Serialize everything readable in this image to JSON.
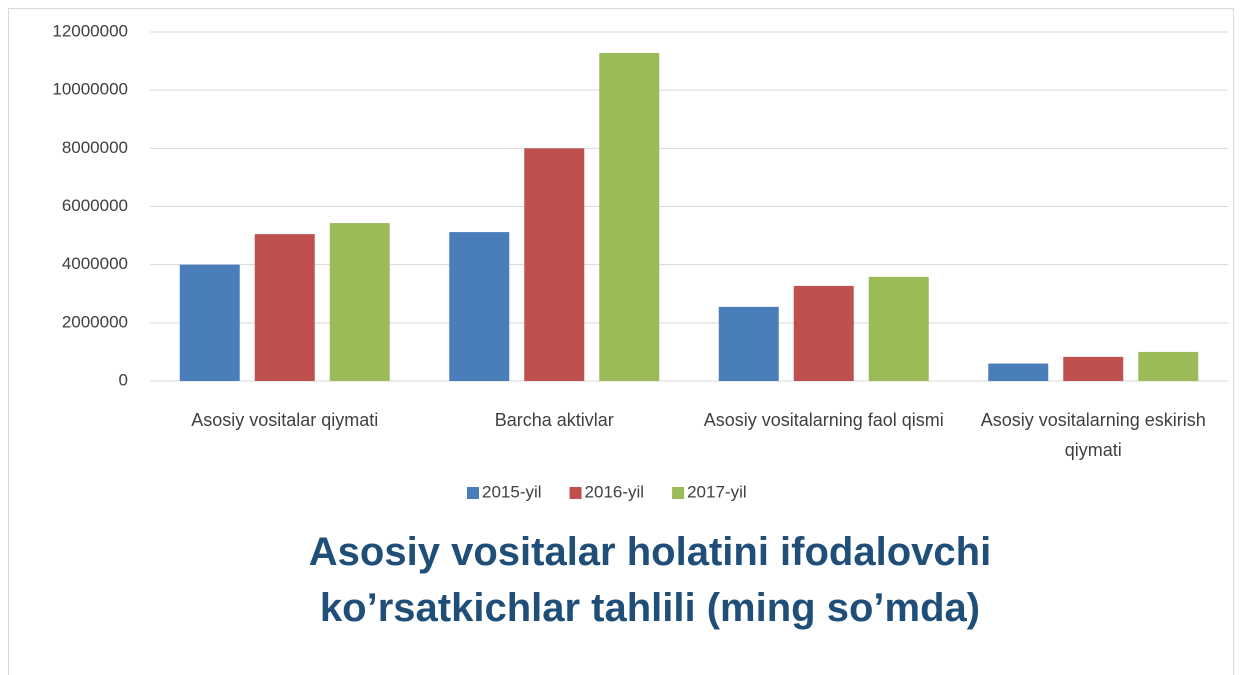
{
  "chart_data": {
    "type": "bar",
    "title": "Asosiy vositalar holatini ifodalovchi ko’rsatkichlar tahlili (ming so’mda)",
    "categories": [
      "Asosiy vositalar qiymati",
      "Barcha aktivlar",
      "Asosiy vositalarning faol qismi",
      "Asosiy vositalarning eskirish qiymati"
    ],
    "series": [
      {
        "name": "2015-yil",
        "color": "#4a7ebb",
        "values": [
          4000000,
          5120000,
          2550000,
          600000
        ]
      },
      {
        "name": "2016-yil",
        "color": "#c0504d",
        "values": [
          5050000,
          8000000,
          3270000,
          830000
        ]
      },
      {
        "name": "2017-yil",
        "color": "#9bbb59",
        "values": [
          5430000,
          11280000,
          3580000,
          1000000
        ]
      }
    ],
    "ylim": [
      0,
      12000000
    ],
    "yticks": [
      0,
      2000000,
      4000000,
      6000000,
      8000000,
      10000000,
      12000000
    ],
    "grid": true,
    "legend": "bottom"
  }
}
